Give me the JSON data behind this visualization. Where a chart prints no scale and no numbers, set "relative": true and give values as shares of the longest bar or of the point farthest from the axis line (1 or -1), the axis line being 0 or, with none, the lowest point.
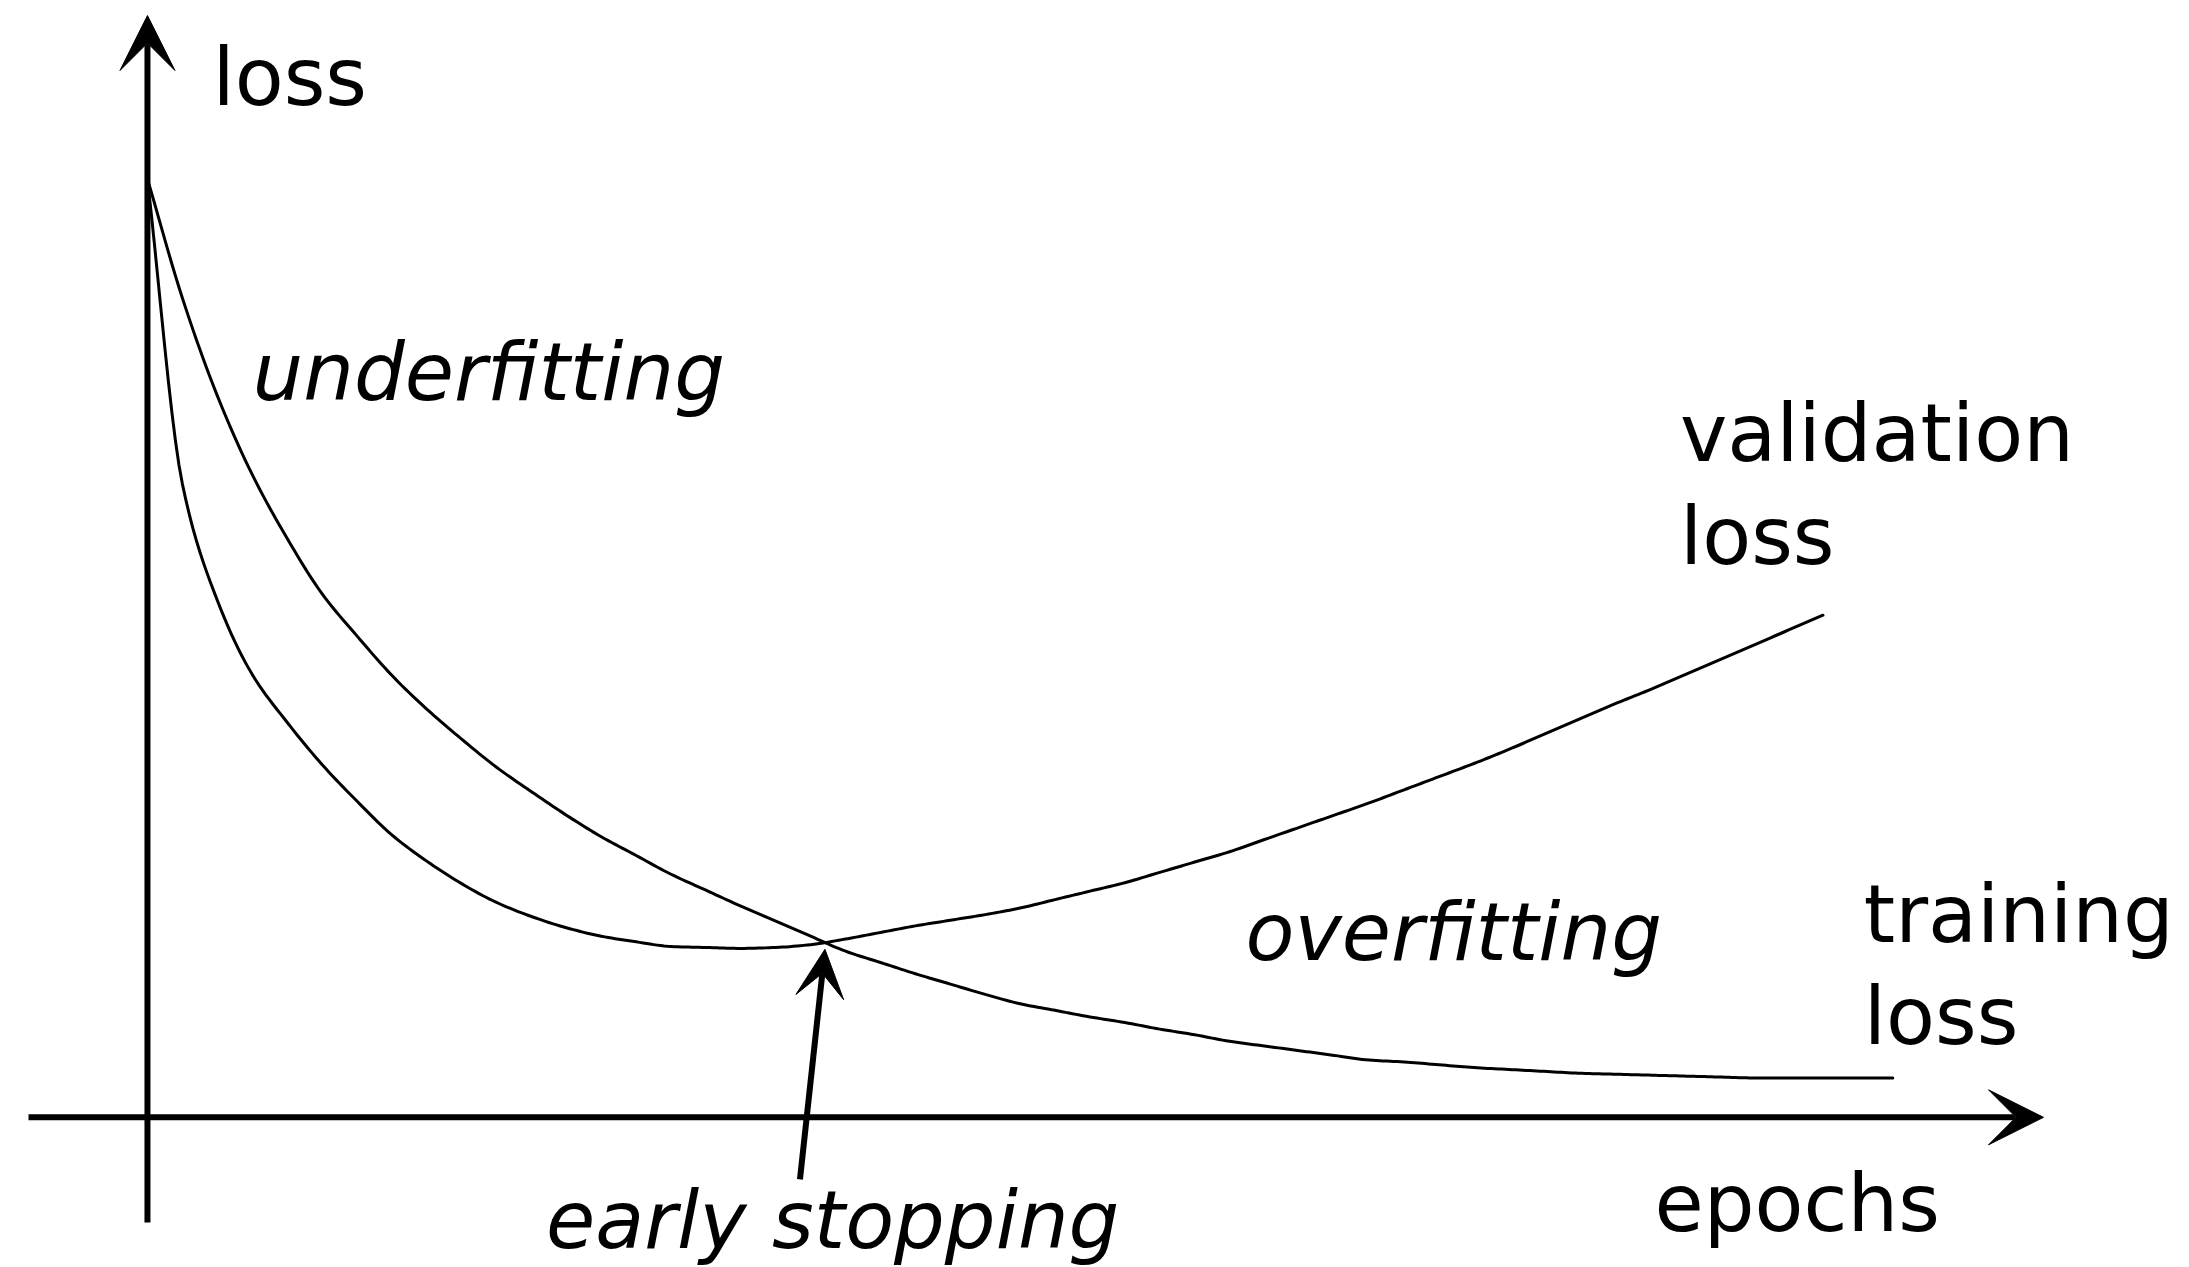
{
  "chart_data": {
    "type": "line",
    "relative": true,
    "xlabel": "epochs",
    "ylabel": "loss",
    "line_style": "solid",
    "categories": [
      null,
      null,
      null,
      null,
      null,
      null,
      null,
      null,
      null,
      null,
      null,
      null,
      null,
      null,
      null,
      null,
      null,
      null,
      null,
      null,
      null,
      null,
      null,
      null,
      null,
      null,
      null,
      null,
      null,
      null,
      null,
      null,
      null,
      null,
      null,
      null,
      null,
      null,
      null,
      null,
      null,
      null,
      null,
      null,
      null,
      null,
      null,
      null,
      null,
      null,
      null
    ],
    "series": [
      {
        "name": "validation loss",
        "color": "#000000",
        "values": [
          1.0,
          0.675,
          0.551,
          0.472,
          0.421,
          0.376,
          0.337,
          0.301,
          0.273,
          0.249,
          0.229,
          0.214,
          0.202,
          0.193,
          0.187,
          0.182,
          0.181,
          0.18,
          0.181,
          0.184,
          0.19,
          0.197,
          0.204,
          0.21,
          0.216,
          0.223,
          0.232,
          0.241,
          0.25,
          0.261,
          0.272,
          0.283,
          0.296,
          0.309,
          0.322,
          0.335,
          0.349,
          0.363,
          0.377,
          0.392,
          0.408,
          0.424,
          0.44,
          0.455,
          0.471,
          0.487,
          0.503,
          0.519,
          0.535,
          null,
          null
        ]
      },
      {
        "name": "training loss",
        "color": "#000000",
        "values": [
          1.0,
          0.873,
          0.769,
          0.685,
          0.617,
          0.558,
          0.513,
          0.471,
          0.435,
          0.403,
          0.373,
          0.347,
          0.322,
          0.299,
          0.279,
          0.259,
          0.242,
          0.225,
          0.209,
          0.193,
          0.177,
          0.165,
          0.153,
          0.142,
          0.131,
          0.121,
          0.114,
          0.107,
          0.101,
          0.094,
          0.088,
          0.081,
          0.076,
          0.071,
          0.066,
          0.061,
          0.059,
          0.056,
          0.053,
          0.051,
          0.049,
          0.047,
          0.046,
          0.045,
          0.044,
          0.043,
          0.042,
          0.042,
          0.042,
          0.042,
          0.042
        ]
      }
    ],
    "annotations": [
      "underfitting",
      "overfitting",
      "early stopping"
    ]
  }
}
